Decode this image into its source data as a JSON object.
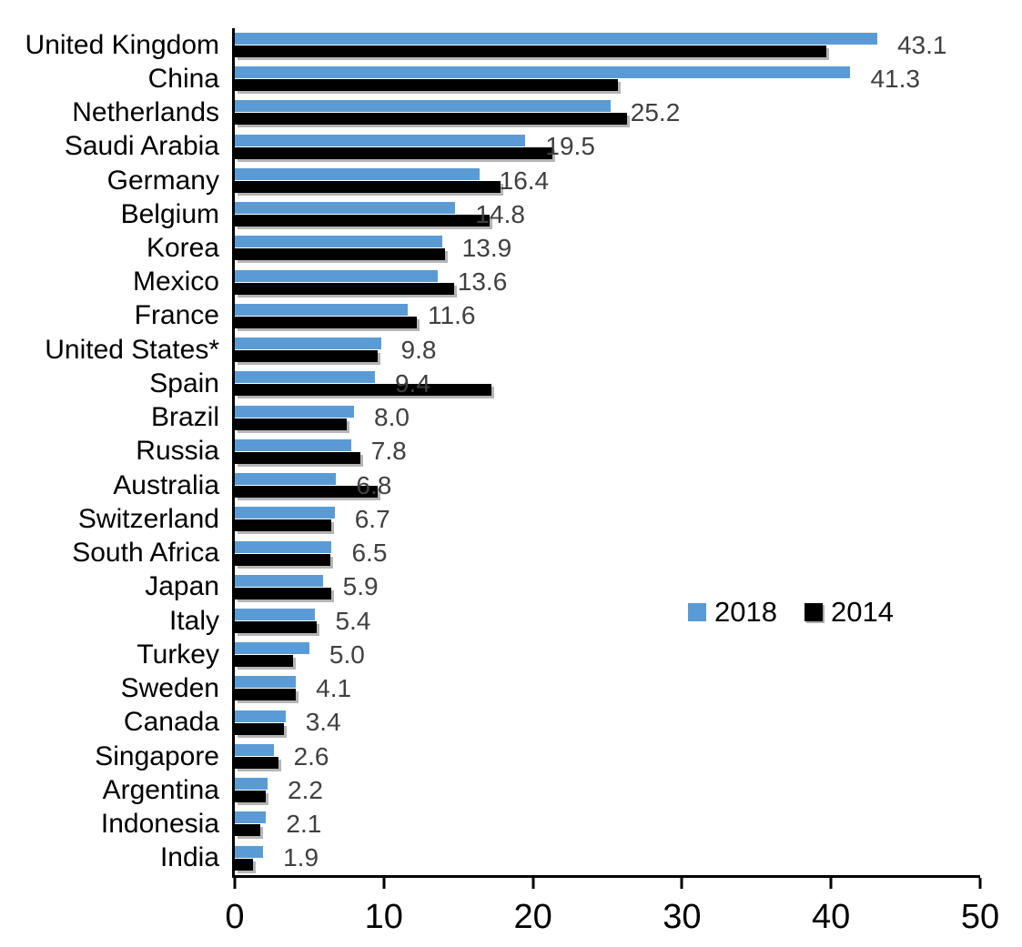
{
  "chart_data": {
    "type": "bar",
    "orientation": "horizontal",
    "title": "",
    "xlabel": "",
    "ylabel": "",
    "xlim": [
      0,
      50
    ],
    "x_ticks": [
      "0",
      "10",
      "20",
      "30",
      "40",
      "50"
    ],
    "grid": false,
    "legend_position": "middle-right",
    "categories": [
      "United Kingdom",
      "China",
      "Netherlands",
      "Saudi Arabia",
      "Germany",
      "Belgium",
      "Korea",
      "Mexico",
      "France",
      "United States*",
      "Spain",
      "Brazil",
      "Russia",
      "Australia",
      "Switzerland",
      "South Africa",
      "Japan",
      "Italy",
      "Turkey",
      "Sweden",
      "Canada",
      "Singapore",
      "Argentina",
      "Indonesia",
      "India"
    ],
    "series": [
      {
        "name": "2018",
        "color": "#5B9BD5",
        "values": [
          43.1,
          41.3,
          25.2,
          19.5,
          16.4,
          14.8,
          13.9,
          13.6,
          11.6,
          9.8,
          9.4,
          8.0,
          7.8,
          6.8,
          6.7,
          6.5,
          5.9,
          5.4,
          5.0,
          4.1,
          3.4,
          2.6,
          2.2,
          2.1,
          1.9
        ]
      },
      {
        "name": "2014",
        "color": "#000000",
        "values": [
          39.7,
          25.7,
          26.3,
          21.3,
          17.8,
          17.1,
          14.1,
          14.7,
          12.2,
          9.6,
          17.2,
          7.5,
          8.4,
          9.6,
          6.5,
          6.4,
          6.5,
          5.5,
          3.9,
          4.1,
          3.3,
          2.9,
          2.1,
          1.7,
          1.2
        ]
      }
    ],
    "data_labels": [
      "43.1",
      "41.3",
      "25.2",
      "19.5",
      "16.4",
      "14.8",
      "13.9",
      "13.6",
      "11.6",
      "9.8",
      "9.4",
      "8.0",
      "7.8",
      "6.8",
      "6.7",
      "6.5",
      "5.9",
      "5.4",
      "5.0",
      "4.1",
      "3.4",
      "2.6",
      "2.2",
      "2.1",
      "1.9"
    ],
    "data_label_color": "#404040",
    "axis_color": "#000000"
  }
}
